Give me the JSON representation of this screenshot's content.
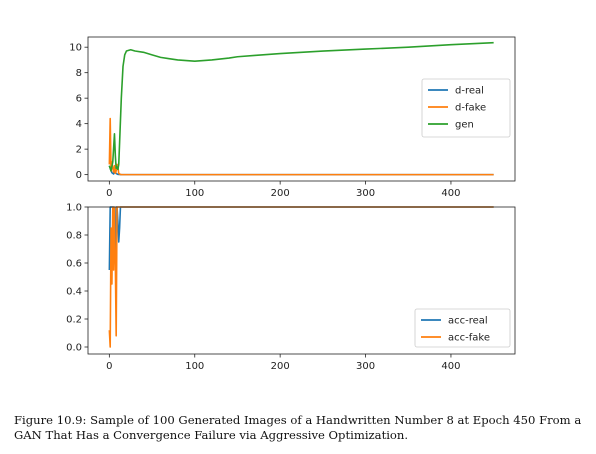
{
  "caption": "Figure 10.9: Sample of 100 Generated Images of a Handwritten Number 8 at Epoch 450 From a GAN That Has a Convergence Failure via Aggressive Optimization.",
  "chart_data": [
    {
      "type": "line",
      "title": "",
      "xlabel": "",
      "ylabel": "",
      "xlim": [
        -25,
        475
      ],
      "ylim": [
        -0.5,
        10.8
      ],
      "xticks": [
        0,
        100,
        200,
        300,
        400
      ],
      "yticks": [
        0,
        2,
        4,
        6,
        8,
        10
      ],
      "grid": false,
      "legend_position": "center-right",
      "series": [
        {
          "name": "d-real",
          "color": "#1f77b4",
          "x": [
            0,
            1,
            2,
            3,
            4,
            5,
            6,
            7,
            8,
            9,
            10,
            11,
            12,
            13,
            14,
            15,
            20,
            30,
            50,
            100,
            200,
            300,
            400,
            450
          ],
          "y": [
            0.7,
            0.5,
            0.3,
            0.15,
            0.1,
            0.05,
            0.4,
            0.2,
            0.1,
            0.05,
            0.02,
            0.01,
            0.01,
            0.0,
            0.0,
            0.0,
            0.0,
            0.0,
            0.0,
            0.0,
            0.0,
            0.0,
            0.0,
            0.0
          ]
        },
        {
          "name": "d-fake",
          "color": "#ff7f0e",
          "x": [
            0,
            1,
            2,
            3,
            4,
            5,
            6,
            7,
            8,
            9,
            10,
            11,
            12,
            13,
            14,
            15,
            20,
            30,
            50,
            100,
            200,
            300,
            400,
            450
          ],
          "y": [
            0.8,
            4.4,
            0.3,
            1.0,
            0.5,
            0.2,
            0.7,
            0.1,
            0.3,
            0.8,
            0.6,
            0.1,
            0.05,
            0.02,
            0.0,
            0.0,
            0.0,
            0.0,
            0.0,
            0.0,
            0.0,
            0.0,
            0.0,
            0.0
          ]
        },
        {
          "name": "gen",
          "color": "#2ca02c",
          "x": [
            0,
            2,
            4,
            6,
            7,
            8,
            9,
            10,
            11,
            12,
            14,
            16,
            18,
            20,
            25,
            30,
            40,
            50,
            60,
            70,
            80,
            100,
            120,
            140,
            150,
            170,
            200,
            250,
            300,
            350,
            400,
            450
          ],
          "y": [
            0.7,
            0.3,
            1.0,
            3.2,
            1.5,
            0.5,
            0.6,
            0.4,
            0.8,
            2.5,
            6.0,
            8.5,
            9.4,
            9.7,
            9.8,
            9.7,
            9.6,
            9.4,
            9.2,
            9.1,
            9.0,
            8.9,
            9.0,
            9.15,
            9.25,
            9.35,
            9.5,
            9.7,
            9.85,
            10.0,
            10.2,
            10.35
          ]
        }
      ]
    },
    {
      "type": "line",
      "title": "",
      "xlabel": "",
      "ylabel": "",
      "xlim": [
        -25,
        475
      ],
      "ylim": [
        -0.05,
        1.0
      ],
      "xticks": [
        0,
        100,
        200,
        300,
        400
      ],
      "yticks": [
        0.0,
        0.2,
        0.4,
        0.6,
        0.8,
        1.0
      ],
      "grid": false,
      "legend_position": "lower-right",
      "series": [
        {
          "name": "acc-real",
          "color": "#1f77b4",
          "x": [
            0,
            1,
            2,
            3,
            4,
            5,
            6,
            7,
            8,
            9,
            10,
            11,
            12,
            13,
            14,
            15,
            20,
            30,
            50,
            100,
            200,
            300,
            400,
            450
          ],
          "y": [
            0.55,
            1.0,
            1.0,
            1.0,
            1.0,
            1.0,
            0.8,
            0.6,
            1.0,
            1.0,
            0.9,
            0.75,
            0.85,
            1.0,
            1.0,
            1.0,
            1.0,
            1.0,
            1.0,
            1.0,
            1.0,
            1.0,
            1.0,
            1.0
          ]
        },
        {
          "name": "acc-fake",
          "color": "#ff7f0e",
          "x": [
            0,
            1,
            2,
            3,
            4,
            5,
            6,
            7,
            8,
            9,
            10,
            11,
            12,
            13,
            14,
            15,
            20,
            30,
            50,
            100,
            200,
            300,
            400,
            450
          ],
          "y": [
            0.12,
            0.0,
            0.85,
            0.45,
            1.0,
            0.55,
            1.0,
            0.6,
            0.08,
            1.0,
            1.0,
            1.0,
            1.0,
            1.0,
            1.0,
            1.0,
            1.0,
            1.0,
            1.0,
            1.0,
            1.0,
            1.0,
            1.0,
            1.0
          ]
        }
      ]
    }
  ]
}
